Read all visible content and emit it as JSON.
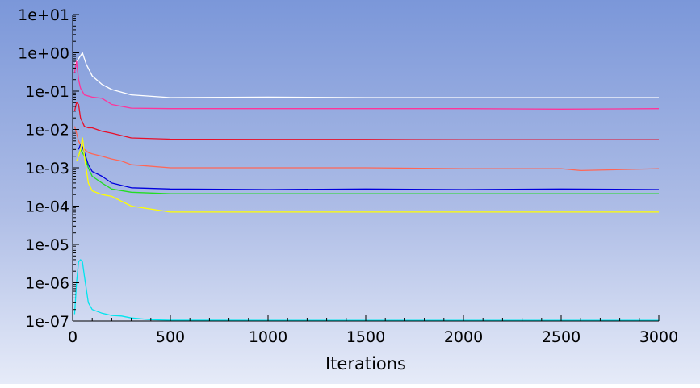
{
  "chart_data": {
    "type": "line",
    "title": "",
    "xlabel": "Iterations",
    "ylabel": "",
    "xlim": [
      0,
      3000
    ],
    "ylim": [
      1e-07,
      10
    ],
    "yscale": "log",
    "grid": false,
    "x_ticks": [
      {
        "value": 0,
        "label": "0"
      },
      {
        "value": 500,
        "label": "500"
      },
      {
        "value": 1000,
        "label": "1000"
      },
      {
        "value": 1500,
        "label": "1500"
      },
      {
        "value": 2000,
        "label": "2000"
      },
      {
        "value": 2500,
        "label": "2500"
      },
      {
        "value": 3000,
        "label": "3000"
      }
    ],
    "y_ticks": [
      {
        "value": 10,
        "label": "1e+01"
      },
      {
        "value": 1,
        "label": "1e+00"
      },
      {
        "value": 0.1,
        "label": "1e-01"
      },
      {
        "value": 0.01,
        "label": "1e-02"
      },
      {
        "value": 0.001,
        "label": "1e-03"
      },
      {
        "value": 0.0001,
        "label": "1e-04"
      },
      {
        "value": 1e-05,
        "label": "1e-05"
      },
      {
        "value": 1e-06,
        "label": "1e-06"
      },
      {
        "value": 1e-07,
        "label": "1e-07"
      }
    ],
    "series": [
      {
        "color": "#ffffff",
        "x": [
          10,
          30,
          50,
          70,
          100,
          150,
          200,
          300,
          500,
          1000,
          1500,
          2000,
          2500,
          3000
        ],
        "y": [
          0.5,
          0.7,
          1.0,
          0.5,
          0.25,
          0.15,
          0.11,
          0.08,
          0.068,
          0.07,
          0.068,
          0.068,
          0.068,
          0.068
        ]
      },
      {
        "color": "#ff3399",
        "x": [
          10,
          20,
          30,
          40,
          60,
          100,
          150,
          200,
          300,
          500,
          1000,
          1500,
          2000,
          2500,
          3000
        ],
        "y": [
          0.3,
          0.6,
          0.2,
          0.12,
          0.08,
          0.07,
          0.065,
          0.045,
          0.036,
          0.035,
          0.035,
          0.035,
          0.035,
          0.034,
          0.035
        ]
      },
      {
        "color": "#e8102a",
        "x": [
          10,
          20,
          30,
          40,
          60,
          80,
          100,
          150,
          200,
          300,
          500,
          1000,
          1500,
          2000,
          2500,
          3000
        ],
        "y": [
          0.03,
          0.05,
          0.045,
          0.02,
          0.012,
          0.011,
          0.011,
          0.009,
          0.008,
          0.006,
          0.0056,
          0.0055,
          0.0055,
          0.0054,
          0.0054,
          0.0054
        ]
      },
      {
        "color": "#ff6655",
        "x": [
          10,
          20,
          30,
          40,
          60,
          80,
          100,
          150,
          200,
          250,
          300,
          500,
          1000,
          1500,
          2000,
          2500,
          2600,
          3000
        ],
        "y": [
          0.012,
          0.008,
          0.005,
          0.004,
          0.003,
          0.0025,
          0.0023,
          0.002,
          0.0017,
          0.0015,
          0.0012,
          0.001,
          0.001,
          0.001,
          0.00095,
          0.00095,
          0.00085,
          0.00095
        ]
      },
      {
        "color": "#0000dd",
        "x": [
          30,
          40,
          50,
          60,
          80,
          100,
          150,
          200,
          300,
          500,
          1000,
          1500,
          2000,
          2500,
          3000
        ],
        "y": [
          0.003,
          0.004,
          0.0035,
          0.0025,
          0.0012,
          0.0008,
          0.0006,
          0.0004,
          0.0003,
          0.00028,
          0.00027,
          0.00028,
          0.00027,
          0.00028,
          0.00027
        ]
      },
      {
        "color": "#22dd22",
        "x": [
          30,
          40,
          50,
          60,
          80,
          100,
          150,
          200,
          300,
          500,
          1000,
          1500,
          2000,
          2500,
          3000
        ],
        "y": [
          0.002,
          0.003,
          0.0025,
          0.002,
          0.001,
          0.0006,
          0.0004,
          0.00028,
          0.00023,
          0.00021,
          0.00021,
          0.00021,
          0.00021,
          0.00021,
          0.00021
        ]
      },
      {
        "color": "#ffff00",
        "x": [
          20,
          30,
          40,
          50,
          55,
          60,
          80,
          100,
          150,
          200,
          300,
          500,
          1000,
          1500,
          2000,
          2500,
          3000
        ],
        "y": [
          0.0015,
          0.002,
          0.003,
          0.006,
          0.004,
          0.002,
          0.0004,
          0.00025,
          0.0002,
          0.00018,
          0.0001,
          7e-05,
          7e-05,
          7e-05,
          7e-05,
          7e-05,
          7e-05
        ]
      },
      {
        "color": "#00e5ee",
        "x": [
          10,
          20,
          30,
          40,
          50,
          60,
          80,
          100,
          150,
          200,
          250,
          300,
          400,
          500,
          1000,
          1500,
          2000,
          2500,
          3000
        ],
        "y": [
          1.5e-07,
          1e-06,
          3.5e-06,
          4e-06,
          3.5e-06,
          1.5e-06,
          3e-07,
          2e-07,
          1.6e-07,
          1.4e-07,
          1.35e-07,
          1.2e-07,
          1.08e-07,
          1.05e-07,
          1.04e-07,
          1.04e-07,
          1.04e-07,
          1.04e-07,
          1.04e-07
        ]
      }
    ]
  }
}
